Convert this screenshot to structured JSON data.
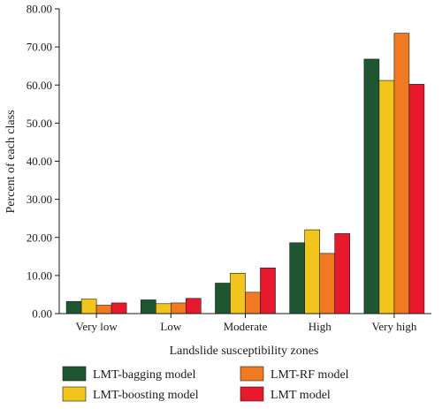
{
  "chart_data": {
    "type": "bar",
    "title": "",
    "xlabel": "Landslide susceptibility zones",
    "ylabel": "Percent of each class",
    "categories": [
      "Very low",
      "Low",
      "Moderate",
      "High",
      "Very high"
    ],
    "ylim": [
      0,
      80
    ],
    "yticks": [
      "0.00",
      "10.00",
      "20.00",
      "30.00",
      "40.00",
      "50.00",
      "60.00",
      "70.00",
      "80.00"
    ],
    "grid": false,
    "legend_position": "bottom",
    "series": [
      {
        "name": "LMT-bagging model",
        "color": "#1e5631",
        "values": [
          3.2,
          3.6,
          8.0,
          18.6,
          66.8
        ]
      },
      {
        "name": "LMT-boosting model",
        "color": "#f2c51c",
        "values": [
          3.8,
          2.6,
          10.6,
          22.0,
          61.2
        ]
      },
      {
        "name": "LMT-RF model",
        "color": "#f07a22",
        "values": [
          2.2,
          2.8,
          5.6,
          15.8,
          73.6
        ]
      },
      {
        "name": "LMT model",
        "color": "#e8192c",
        "values": [
          2.8,
          4.0,
          12.0,
          21.0,
          60.2
        ]
      }
    ]
  }
}
